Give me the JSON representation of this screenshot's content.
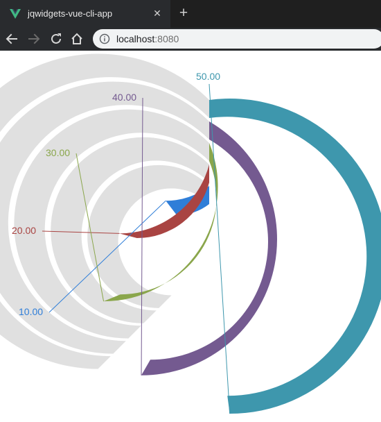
{
  "browser": {
    "tab_title": "jqwidgets-vue-cli-app",
    "favicon_icon": "vue-logo-icon",
    "close_label": "✕",
    "new_tab_label": "+",
    "url_host": "localhost",
    "url_port": ":8080"
  },
  "chart_data": {
    "type": "radial-bar",
    "angle_range_deg": [
      0,
      225
    ],
    "value_range": [
      0,
      60
    ],
    "track_color": "#e0e0e0",
    "series": [
      {
        "label": "10.00",
        "value": 10,
        "color": "#2f7ed8"
      },
      {
        "label": "20.00",
        "value": 20,
        "color": "#a94442"
      },
      {
        "label": "30.00",
        "value": 30,
        "color": "#8aa64b"
      },
      {
        "label": "40.00",
        "value": 40,
        "color": "#745a90"
      },
      {
        "label": "50.00",
        "value": 50,
        "color": "#3e97ad"
      }
    ]
  }
}
